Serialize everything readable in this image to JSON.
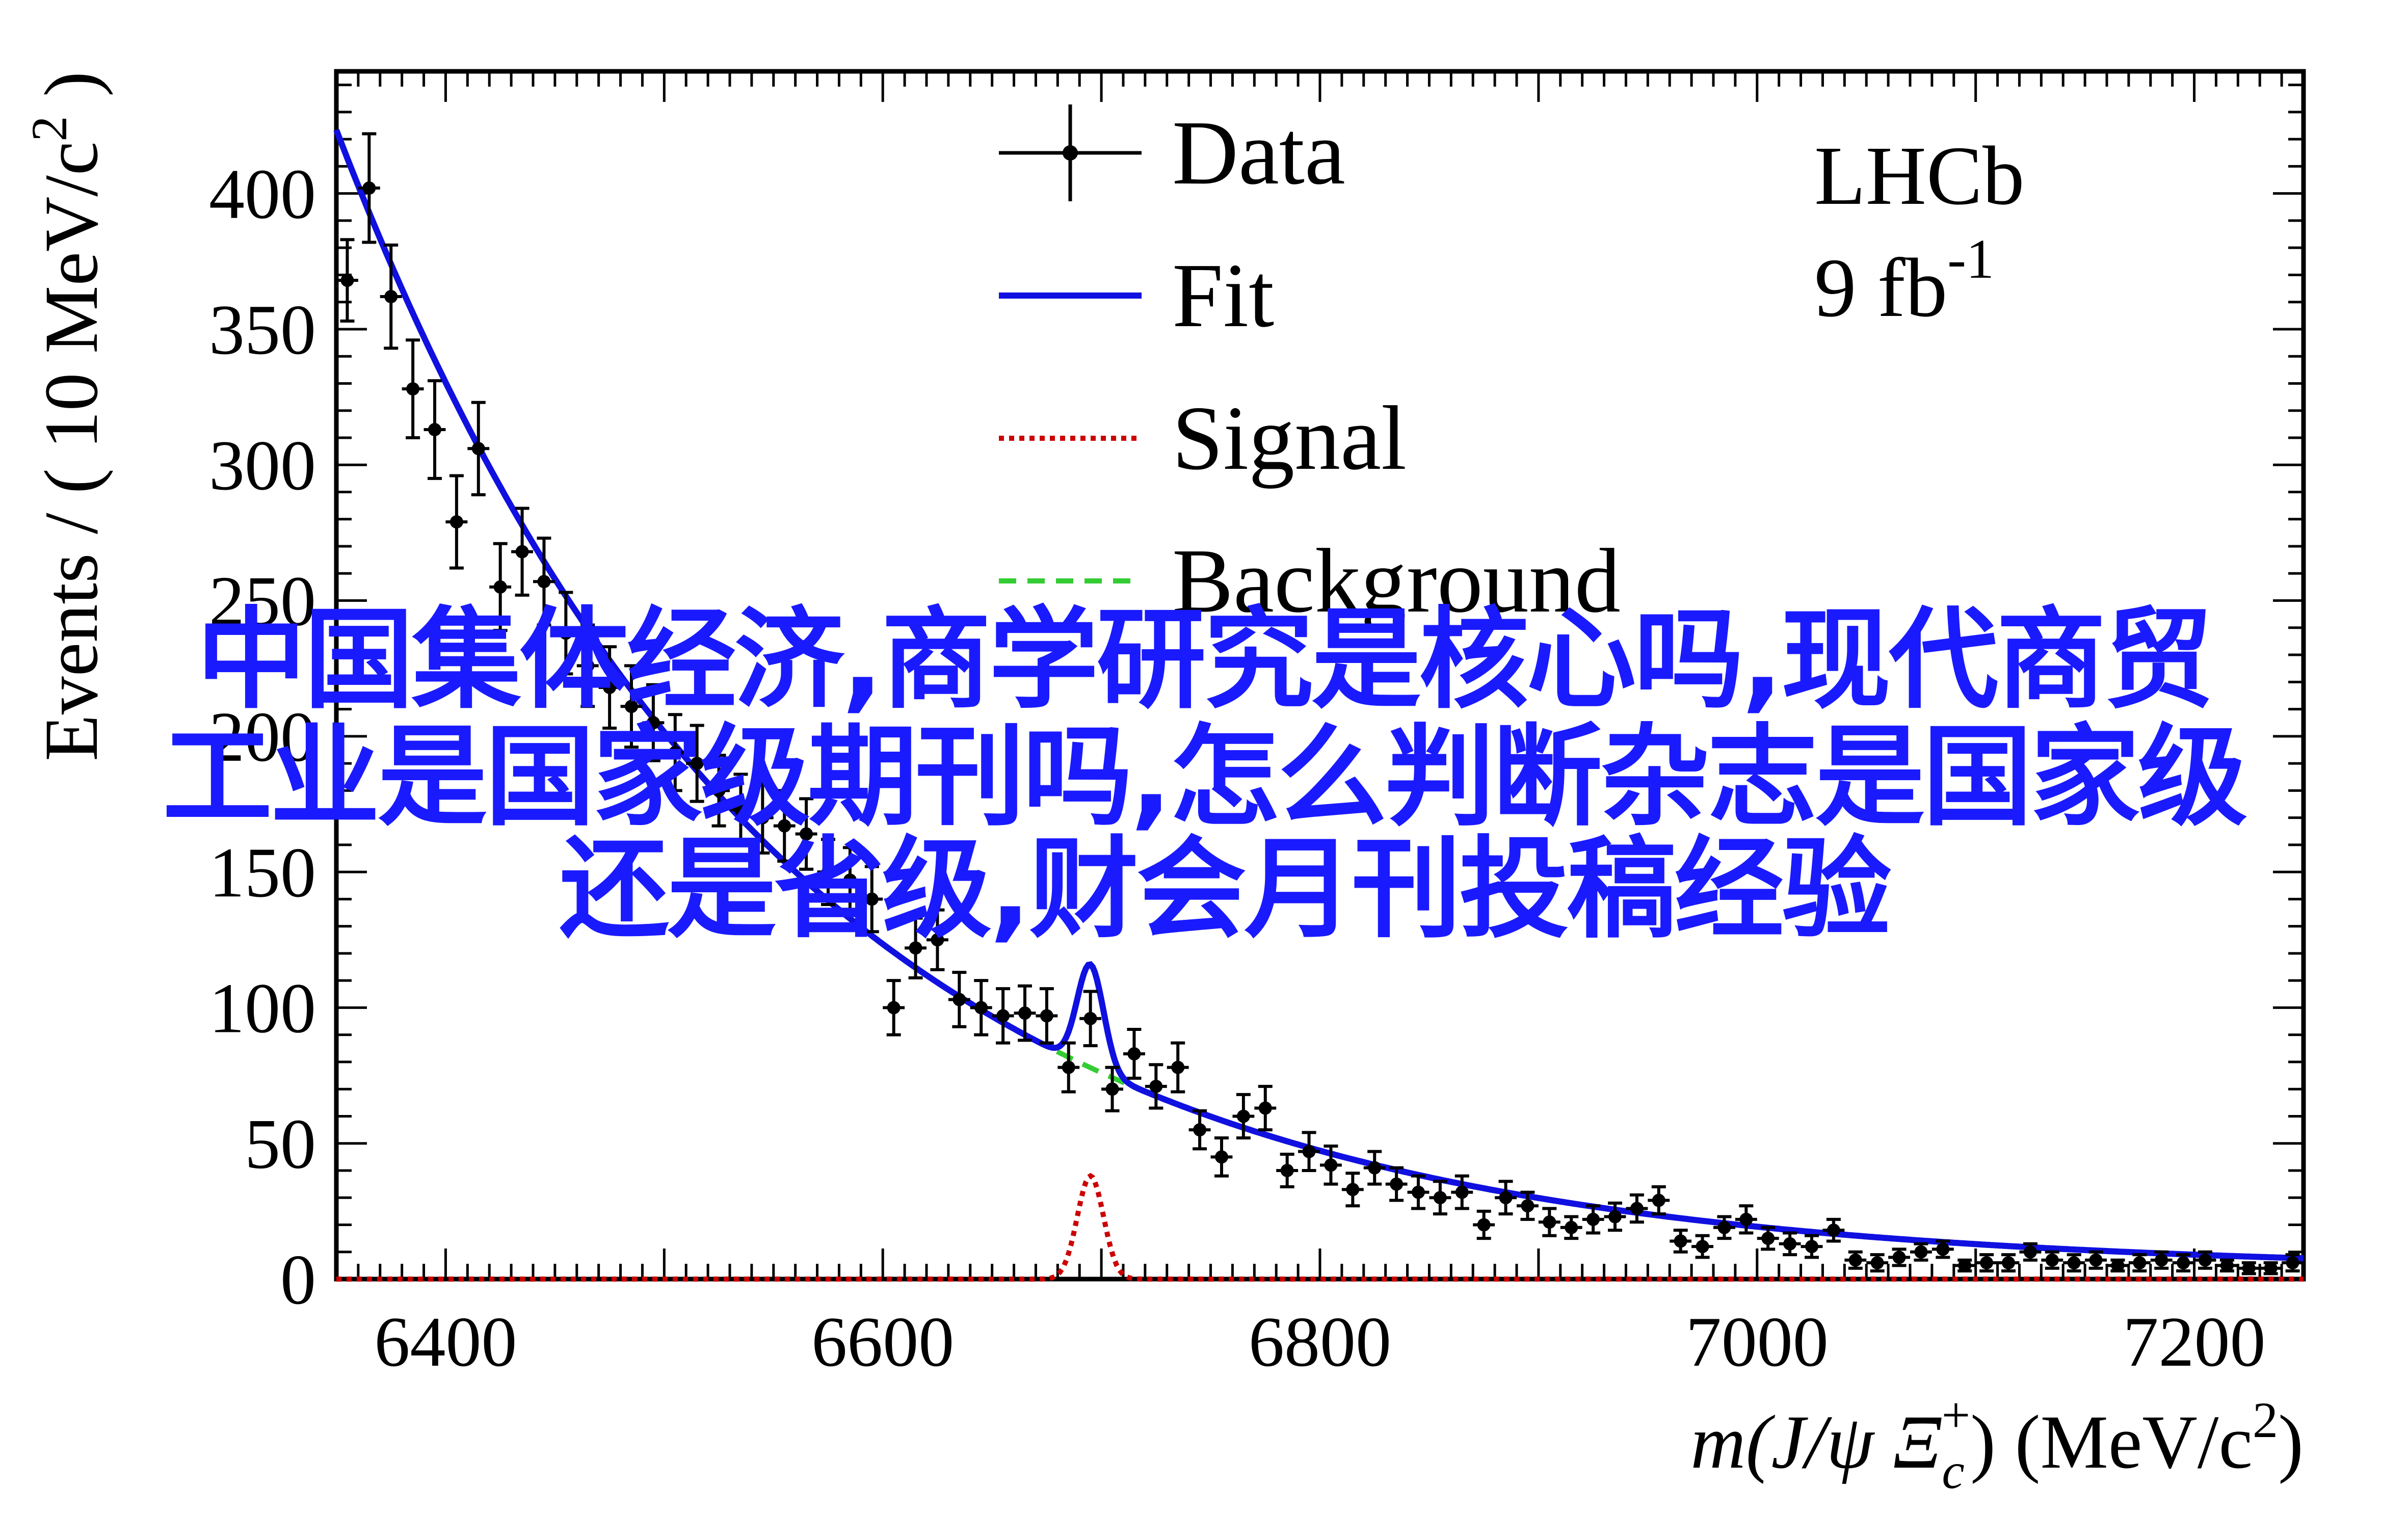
{
  "chart_data": {
    "type": "scatter",
    "experiment": "LHCb",
    "luminosity": {
      "base": "9 fb",
      "sup": "-1"
    },
    "xlabel": {
      "pre": "m(J/ψ Ξ",
      "sub": "c",
      "sup": "+",
      "post": ") (MeV/c",
      "post_sup": "2",
      "close": ")"
    },
    "ylabel": {
      "pre": "Events / ( 10 MeV/c",
      "sup": "2",
      "close": " )"
    },
    "xlim": [
      6350,
      7250
    ],
    "ylim": [
      0,
      445
    ],
    "x_ticks": [
      6400,
      6600,
      6800,
      7000,
      7200
    ],
    "y_ticks": [
      0,
      50,
      100,
      150,
      200,
      250,
      300,
      350,
      400
    ],
    "legend": {
      "position": "top-center",
      "entries": [
        "Data",
        "Fit",
        "Signal",
        "Background"
      ]
    },
    "colors": {
      "data": "#000000",
      "fit": "#1010e0",
      "signal": "#cc0000",
      "background": "#33cc33"
    },
    "signal_peak": {
      "mass": 6695,
      "width": 6,
      "height": 38
    },
    "series": [
      {
        "name": "Data",
        "x": [
          6355,
          6365,
          6375,
          6385,
          6395,
          6405,
          6415,
          6425,
          6435,
          6445,
          6455,
          6465,
          6475,
          6485,
          6495,
          6505,
          6515,
          6525,
          6535,
          6545,
          6555,
          6565,
          6575,
          6585,
          6595,
          6605,
          6615,
          6625,
          6635,
          6645,
          6655,
          6665,
          6675,
          6685,
          6695,
          6705,
          6715,
          6725,
          6735,
          6745,
          6755,
          6765,
          6775,
          6785,
          6795,
          6805,
          6815,
          6825,
          6835,
          6845,
          6855,
          6865,
          6875,
          6885,
          6895,
          6905,
          6915,
          6925,
          6935,
          6945,
          6955,
          6965,
          6975,
          6985,
          6995,
          7005,
          7015,
          7025,
          7035,
          7045,
          7055,
          7065,
          7075,
          7085,
          7095,
          7105,
          7115,
          7125,
          7135,
          7145,
          7155,
          7165,
          7175,
          7185,
          7195,
          7205,
          7215,
          7225,
          7235,
          7245
        ],
        "y": [
          368,
          402,
          362,
          328,
          313,
          279,
          306,
          255,
          268,
          257,
          238,
          226,
          218,
          211,
          205,
          194,
          190,
          180,
          173,
          170,
          167,
          164,
          150,
          147,
          140,
          100,
          122,
          125,
          103,
          100,
          97,
          98,
          97,
          78,
          96,
          70,
          83,
          71,
          78,
          55,
          45,
          60,
          63,
          40,
          47,
          42,
          33,
          41,
          35,
          32,
          30,
          32,
          20,
          30,
          27,
          21,
          19,
          22,
          23,
          26,
          29,
          14,
          12,
          19,
          22,
          15,
          13,
          12,
          18,
          7,
          6,
          8,
          10,
          11,
          5,
          6,
          6,
          10,
          7,
          6,
          7,
          5,
          6,
          7,
          6,
          7,
          5,
          4,
          4,
          6
        ],
        "err": [
          15,
          20,
          19,
          18,
          18,
          17,
          17,
          16,
          16,
          16,
          15,
          15,
          15,
          15,
          14,
          14,
          14,
          13,
          13,
          13,
          13,
          13,
          12,
          12,
          12,
          10,
          11,
          11,
          10,
          10,
          10,
          10,
          10,
          9,
          10,
          8,
          9,
          8,
          9,
          7,
          7,
          8,
          8,
          6,
          7,
          7,
          6,
          6,
          6,
          6,
          6,
          6,
          5,
          6,
          5,
          5,
          4,
          5,
          5,
          5,
          5,
          4,
          4,
          4,
          5,
          4,
          4,
          4,
          4,
          3,
          3,
          3,
          3,
          3,
          2,
          3,
          3,
          3,
          3,
          3,
          3,
          2,
          3,
          3,
          3,
          3,
          2,
          2,
          2,
          3
        ]
      }
    ]
  },
  "overlay": {
    "lines": [
      "中国集体经济,商学研究是核心吗,现代商贸",
      "工业是国家级期刊吗,怎么判断杂志是国家级",
      "还是省级,财会月刊投稿经验"
    ]
  }
}
